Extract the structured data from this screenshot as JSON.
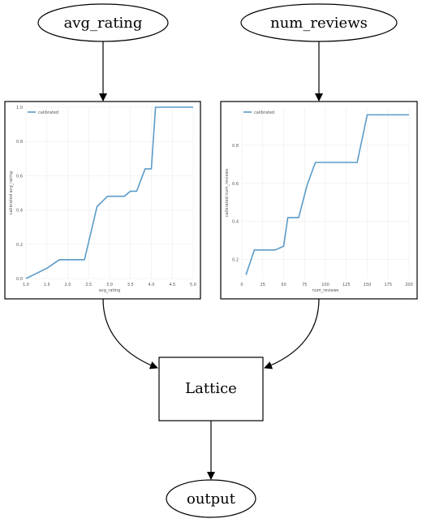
{
  "nodes": {
    "input_a": "avg_rating",
    "input_b": "num_reviews",
    "lattice": "Lattice",
    "output": "output"
  },
  "chart_data": [
    {
      "type": "line",
      "xlabel": "avg_rating",
      "ylabel": "calibrated avg_rating",
      "xlim": [
        1.0,
        5.0
      ],
      "ylim": [
        0.0,
        1.0
      ],
      "grid": true,
      "legend_position": "top-left",
      "x_ticks": [
        "1.0",
        "1.5",
        "2.0",
        "2.5",
        "3.0",
        "3.5",
        "4.0",
        "4.5",
        "5.0"
      ],
      "y_ticks": [
        "0.0",
        "0.2",
        "0.4",
        "0.6",
        "0.8",
        "1.0"
      ],
      "series": [
        {
          "name": "calibrated",
          "color": "#5b9bc8",
          "x": [
            1.0,
            1.5,
            1.8,
            2.0,
            2.2,
            2.4,
            2.7,
            2.95,
            3.35,
            3.5,
            3.65,
            3.85,
            4.0,
            4.1,
            4.5,
            5.0
          ],
          "y": [
            0.0,
            0.06,
            0.11,
            0.11,
            0.11,
            0.11,
            0.42,
            0.48,
            0.48,
            0.51,
            0.51,
            0.64,
            0.64,
            1.0,
            1.0,
            1.0
          ]
        }
      ]
    },
    {
      "type": "line",
      "xlabel": "num_reviews",
      "ylabel": "calibrated num_reviews",
      "xlim": [
        0,
        200
      ],
      "ylim": [
        0.1,
        1.0
      ],
      "grid": true,
      "legend_position": "top-left",
      "x_ticks": [
        "0",
        "25",
        "50",
        "75",
        "100",
        "125",
        "150",
        "175",
        "200"
      ],
      "y_ticks": [
        "0.2",
        "0.4",
        "0.6",
        "0.8"
      ],
      "series": [
        {
          "name": "calibrated",
          "color": "#5b9bc8",
          "x": [
            5,
            15,
            22,
            40,
            50,
            55,
            60,
            68,
            78,
            88,
            110,
            138,
            150,
            175,
            200
          ],
          "y": [
            0.12,
            0.25,
            0.25,
            0.25,
            0.27,
            0.42,
            0.42,
            0.42,
            0.59,
            0.71,
            0.71,
            0.71,
            0.96,
            0.96,
            0.96
          ]
        }
      ]
    }
  ]
}
